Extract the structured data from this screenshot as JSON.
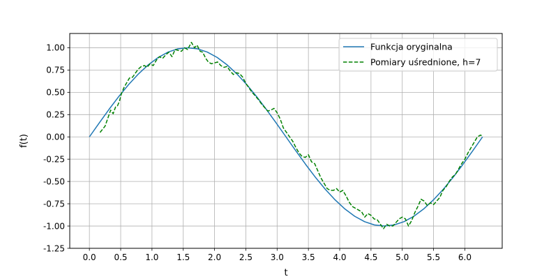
{
  "chart_data": {
    "type": "line",
    "xlabel": "t",
    "ylabel": "f(t)",
    "xlim": [
      -0.314,
      6.597
    ],
    "ylim": [
      -1.25,
      1.16
    ],
    "xticks": [
      "0.0",
      "0.5",
      "1.0",
      "1.5",
      "2.0",
      "2.5",
      "3.0",
      "3.5",
      "4.0",
      "4.5",
      "5.0",
      "5.5",
      "6.0"
    ],
    "yticks": [
      "-1.25",
      "-1.00",
      "-0.75",
      "-0.50",
      "-0.25",
      "0.00",
      "0.25",
      "0.50",
      "0.75",
      "1.00"
    ],
    "grid": true,
    "legend_position": "top-right",
    "series": [
      {
        "name": "Funkcja oryginalna",
        "color": "#1f77b4",
        "style": "solid",
        "x": [
          0.0,
          0.157,
          0.314,
          0.471,
          0.628,
          0.785,
          0.942,
          1.1,
          1.257,
          1.414,
          1.571,
          1.728,
          1.885,
          2.042,
          2.199,
          2.356,
          2.513,
          2.67,
          2.827,
          2.985,
          3.142,
          3.299,
          3.456,
          3.613,
          3.77,
          3.927,
          4.084,
          4.241,
          4.398,
          4.555,
          4.712,
          4.869,
          5.027,
          5.184,
          5.341,
          5.498,
          5.655,
          5.812,
          5.969,
          6.126,
          6.283
        ],
        "y": [
          0.0,
          0.156,
          0.309,
          0.454,
          0.588,
          0.707,
          0.809,
          0.891,
          0.951,
          0.988,
          1.0,
          0.988,
          0.951,
          0.891,
          0.809,
          0.707,
          0.588,
          0.454,
          0.309,
          0.156,
          0.0,
          -0.156,
          -0.309,
          -0.454,
          -0.588,
          -0.707,
          -0.809,
          -0.891,
          -0.951,
          -0.988,
          -1.0,
          -0.988,
          -0.951,
          -0.891,
          -0.809,
          -0.707,
          -0.588,
          -0.454,
          -0.309,
          -0.156,
          0.0
        ]
      },
      {
        "name": "Pomiary uśrednione, h=7",
        "color": "#008000",
        "style": "dashed",
        "x": [
          0.17,
          0.25,
          0.3,
          0.34,
          0.38,
          0.42,
          0.45,
          0.48,
          0.51,
          0.55,
          0.59,
          0.64,
          0.69,
          0.74,
          0.78,
          0.83,
          0.88,
          0.92,
          0.97,
          1.02,
          1.07,
          1.12,
          1.17,
          1.22,
          1.27,
          1.32,
          1.37,
          1.42,
          1.47,
          1.52,
          1.57,
          1.63,
          1.68,
          1.72,
          1.77,
          1.81,
          1.86,
          1.9,
          1.95,
          2.0,
          2.05,
          2.1,
          2.15,
          2.2,
          2.25,
          2.3,
          2.35,
          2.4,
          2.45,
          2.5,
          2.55,
          2.6,
          2.65,
          2.7,
          2.75,
          2.8,
          2.85,
          2.9,
          2.95,
          3.0,
          3.05,
          3.1,
          3.15,
          3.2,
          3.25,
          3.3,
          3.35,
          3.4,
          3.45,
          3.5,
          3.55,
          3.6,
          3.65,
          3.7,
          3.75,
          3.8,
          3.85,
          3.9,
          3.95,
          4.0,
          4.05,
          4.1,
          4.15,
          4.2,
          4.25,
          4.3,
          4.35,
          4.4,
          4.45,
          4.5,
          4.55,
          4.6,
          4.65,
          4.7,
          4.75,
          4.8,
          4.85,
          4.9,
          4.95,
          5.0,
          5.05,
          5.1,
          5.15,
          5.2,
          5.25,
          5.3,
          5.35,
          5.4,
          5.45,
          5.5,
          5.55,
          5.6,
          5.65,
          5.7,
          5.75,
          5.8,
          5.85,
          5.9,
          5.95,
          6.0,
          6.05,
          6.1,
          6.15,
          6.2,
          6.25,
          6.28
        ],
        "y": [
          0.05,
          0.12,
          0.22,
          0.3,
          0.26,
          0.34,
          0.35,
          0.4,
          0.48,
          0.55,
          0.6,
          0.66,
          0.67,
          0.72,
          0.76,
          0.79,
          0.8,
          0.78,
          0.82,
          0.8,
          0.86,
          0.9,
          0.88,
          0.92,
          0.95,
          0.9,
          0.98,
          0.97,
          0.96,
          1.0,
          0.98,
          1.06,
          1.0,
          1.03,
          0.96,
          0.95,
          0.88,
          0.84,
          0.82,
          0.83,
          0.84,
          0.8,
          0.78,
          0.79,
          0.74,
          0.7,
          0.72,
          0.71,
          0.67,
          0.6,
          0.55,
          0.5,
          0.46,
          0.42,
          0.37,
          0.33,
          0.29,
          0.3,
          0.32,
          0.27,
          0.2,
          0.1,
          0.05,
          0.0,
          -0.05,
          -0.12,
          -0.18,
          -0.22,
          -0.23,
          -0.2,
          -0.28,
          -0.3,
          -0.38,
          -0.46,
          -0.52,
          -0.58,
          -0.6,
          -0.6,
          -0.58,
          -0.62,
          -0.6,
          -0.66,
          -0.73,
          -0.78,
          -0.8,
          -0.82,
          -0.84,
          -0.9,
          -0.86,
          -0.88,
          -0.92,
          -0.93,
          -0.98,
          -1.03,
          -0.98,
          -1.0,
          -1.0,
          -0.96,
          -0.92,
          -0.9,
          -0.92,
          -1.0,
          -0.94,
          -0.85,
          -0.78,
          -0.7,
          -0.72,
          -0.77,
          -0.74,
          -0.76,
          -0.72,
          -0.68,
          -0.6,
          -0.56,
          -0.5,
          -0.45,
          -0.42,
          -0.36,
          -0.3,
          -0.25,
          -0.18,
          -0.12,
          -0.06,
          0.0,
          0.02,
          0.01
        ]
      }
    ]
  }
}
